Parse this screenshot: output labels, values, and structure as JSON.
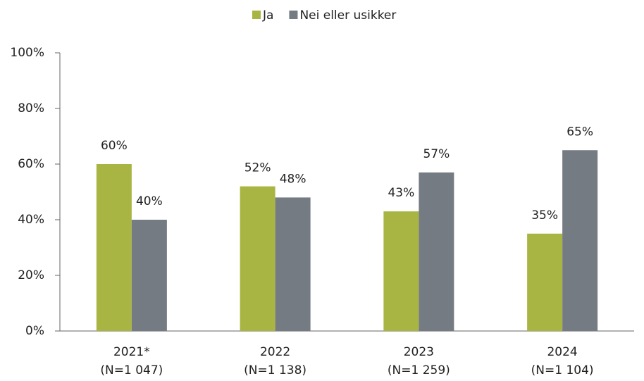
{
  "chart_data": {
    "type": "bar",
    "categories": [
      [
        "2021*",
        "(N=1 047)"
      ],
      [
        "2022",
        "(N=1 138)"
      ],
      [
        "2023",
        "(N=1 259)"
      ],
      [
        "2024",
        "(N=1 104)"
      ]
    ],
    "series": [
      {
        "name": "Ja",
        "color": "#a9b542",
        "values": [
          60,
          52,
          43,
          35
        ],
        "value_labels": [
          "60%",
          "52%",
          "43%",
          "35%"
        ]
      },
      {
        "name": "Nei eller usikker",
        "color": "#747b82",
        "values": [
          40,
          48,
          57,
          65
        ],
        "value_labels": [
          "40%",
          "48%",
          "57%",
          "65%"
        ]
      }
    ],
    "ylim": [
      0,
      100
    ],
    "yticks": [
      {
        "value": 0,
        "label": "0%"
      },
      {
        "value": 20,
        "label": "20%"
      },
      {
        "value": 40,
        "label": "40%"
      },
      {
        "value": 60,
        "label": "60%"
      },
      {
        "value": 80,
        "label": "80%"
      },
      {
        "value": 100,
        "label": "100%"
      }
    ],
    "legend": "top"
  }
}
